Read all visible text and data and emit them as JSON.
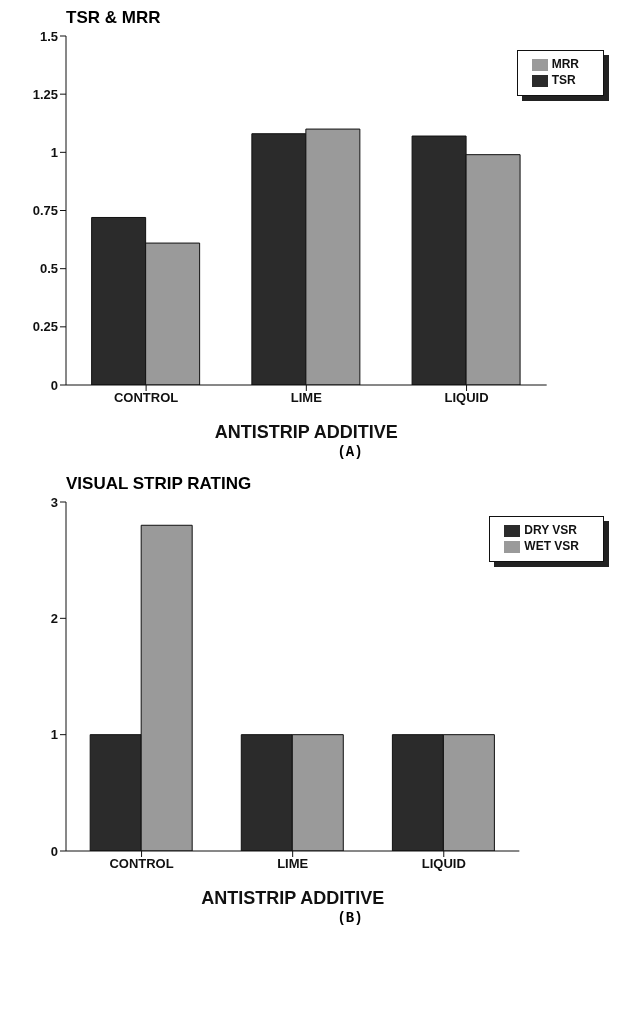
{
  "chart_data": [
    {
      "type": "bar",
      "title": "TSR & MRR",
      "xlabel": "ANTISTRIP ADDITIVE",
      "annotations": [
        "(A)"
      ],
      "categories": [
        "CONTROL",
        "LIME",
        "LIQUID"
      ],
      "series": [
        {
          "name": "TSR",
          "color": "#2b2b2b",
          "values": [
            0.72,
            1.08,
            1.07
          ]
        },
        {
          "name": "MRR",
          "color": "#9a9a9a",
          "values": [
            0.61,
            1.1,
            0.99
          ]
        }
      ],
      "ylim": [
        0,
        1.5
      ],
      "yticks": [
        0,
        0.25,
        0.5,
        0.75,
        1,
        1.25,
        1.5
      ],
      "legend": "top right"
    },
    {
      "type": "bar",
      "title": "VISUAL STRIP RATING",
      "xlabel": "ANTISTRIP ADDITIVE",
      "annotations": [
        "(B)"
      ],
      "categories": [
        "CONTROL",
        "LIME",
        "LIQUID"
      ],
      "series": [
        {
          "name": "DRY VSR",
          "color": "#2b2b2b",
          "values": [
            1,
            1,
            1
          ]
        },
        {
          "name": "WET VSR",
          "color": "#9a9a9a",
          "values": [
            2.8,
            1,
            1
          ]
        }
      ],
      "ylim": [
        0,
        3
      ],
      "yticks": [
        0,
        1,
        2,
        3
      ],
      "legend": "top right"
    }
  ]
}
